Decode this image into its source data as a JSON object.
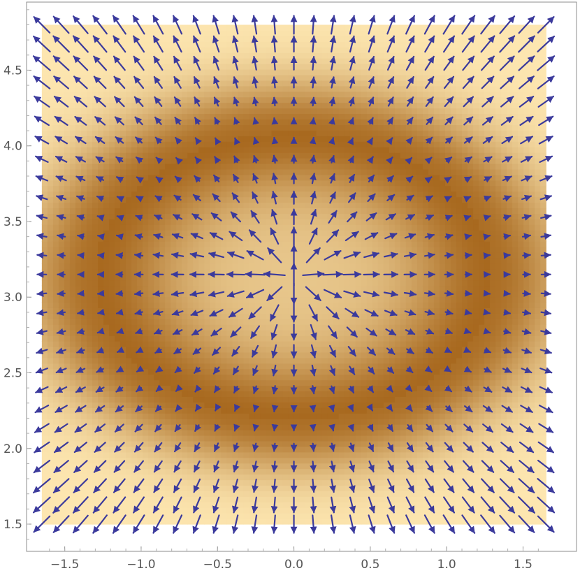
{
  "chart_data": {
    "type": "vector-field",
    "title": "",
    "xlabel": "",
    "ylabel": "",
    "xlim": [
      -1.75,
      1.85
    ],
    "ylim": [
      1.32,
      4.95
    ],
    "domain": {
      "x": [
        -1.65,
        1.65
      ],
      "y": [
        1.5,
        4.8
      ]
    },
    "x_ticks": [
      {
        "value": -1.5,
        "label": "−1.5"
      },
      {
        "value": -1.0,
        "label": "−1.0"
      },
      {
        "value": -0.5,
        "label": "−0.5"
      },
      {
        "value": 0.0,
        "label": "0.0"
      },
      {
        "value": 0.5,
        "label": "0.5"
      },
      {
        "value": 1.0,
        "label": "1.0"
      },
      {
        "value": 1.5,
        "label": "1.5"
      }
    ],
    "y_ticks": [
      {
        "value": 1.5,
        "label": "1.5"
      },
      {
        "value": 2.0,
        "label": "2.0"
      },
      {
        "value": 2.5,
        "label": "2.5"
      },
      {
        "value": 3.0,
        "label": "3.0"
      },
      {
        "value": 3.5,
        "label": "3.5"
      },
      {
        "value": 4.0,
        "label": "4.0"
      },
      {
        "value": 4.5,
        "label": "4.5"
      }
    ],
    "grid": false,
    "field": {
      "center": [
        0.0,
        3.14
      ],
      "ring_semi_axes": [
        1.3,
        0.95
      ],
      "arrow_grid": {
        "nx": 27,
        "ny": 27
      },
      "direction": "radially outward from center",
      "magnitude": "smallest on the dark elliptical ring, largest at the corners"
    },
    "colors": {
      "arrow": "#3b3a9c",
      "density_light": "#fde6b0",
      "density_dark": "#a8691f",
      "frame": "#8c8c8c"
    }
  }
}
